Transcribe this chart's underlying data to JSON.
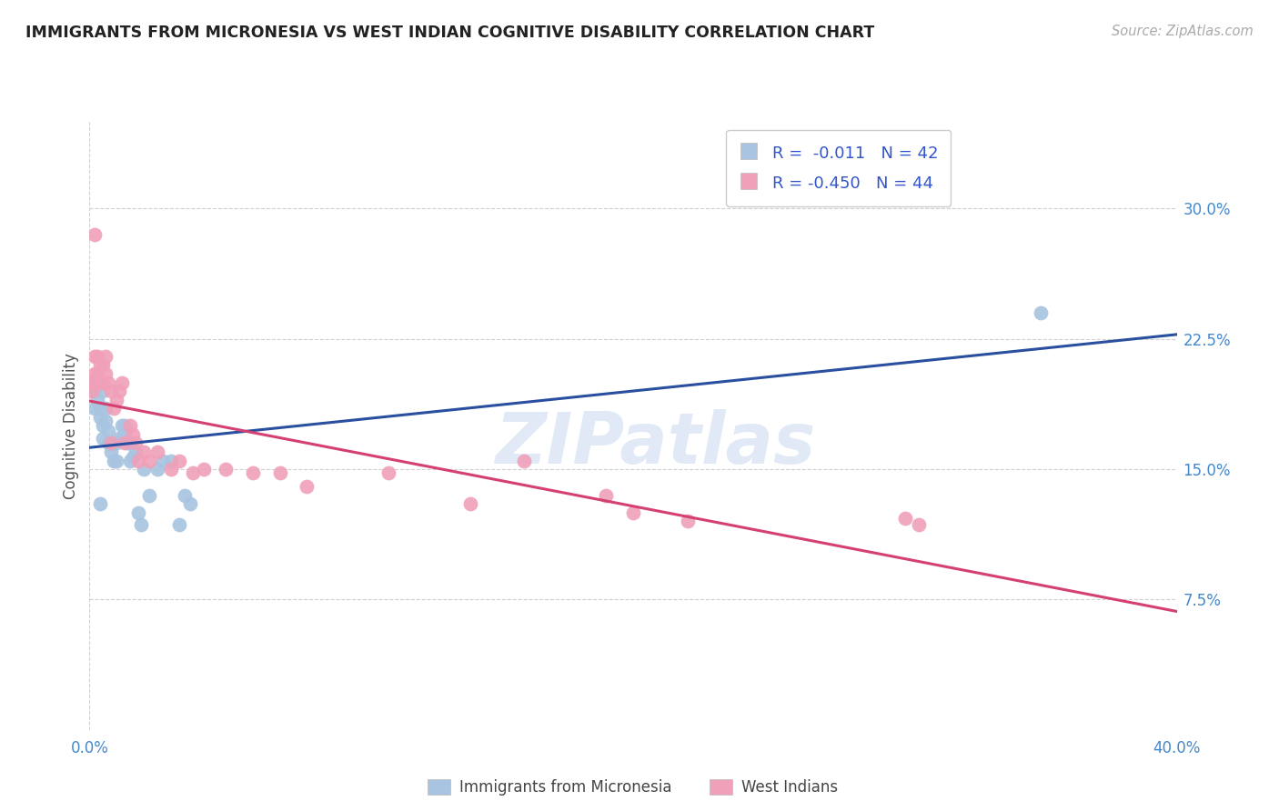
{
  "title": "IMMIGRANTS FROM MICRONESIA VS WEST INDIAN COGNITIVE DISABILITY CORRELATION CHART",
  "source_text": "Source: ZipAtlas.com",
  "ylabel": "Cognitive Disability",
  "legend_label1": "Immigrants from Micronesia",
  "legend_label2": "West Indians",
  "R1": -0.011,
  "N1": 42,
  "R2": -0.45,
  "N2": 44,
  "color_blue": "#a8c4e0",
  "color_pink": "#f0a0b8",
  "line_blue": "#2a4fa0",
  "line_pink": "#d44070",
  "xlim": [
    0.0,
    0.4
  ],
  "ylim": [
    0.0,
    0.35
  ],
  "yticks": [
    0.075,
    0.15,
    0.225,
    0.3
  ],
  "ytick_labels": [
    "7.5%",
    "15.0%",
    "22.5%",
    "30.0%"
  ],
  "watermark": "ZIPatlas",
  "background_color": "#ffffff",
  "grid_color": "#d0d0d0",
  "blue_x": [
    0.001,
    0.001,
    0.002,
    0.002,
    0.003,
    0.003,
    0.004,
    0.004,
    0.005,
    0.005,
    0.005,
    0.006,
    0.006,
    0.007,
    0.007,
    0.008,
    0.008,
    0.009,
    0.009,
    0.01,
    0.01,
    0.011,
    0.012,
    0.013,
    0.013,
    0.014,
    0.015,
    0.015,
    0.016,
    0.017,
    0.018,
    0.019,
    0.02,
    0.022,
    0.025,
    0.027,
    0.03,
    0.033,
    0.035,
    0.037,
    0.35,
    0.004
  ],
  "blue_y": [
    0.2,
    0.195,
    0.195,
    0.185,
    0.2,
    0.19,
    0.185,
    0.18,
    0.195,
    0.175,
    0.168,
    0.185,
    0.178,
    0.172,
    0.165,
    0.165,
    0.16,
    0.165,
    0.155,
    0.165,
    0.155,
    0.168,
    0.175,
    0.175,
    0.17,
    0.165,
    0.165,
    0.155,
    0.157,
    0.16,
    0.125,
    0.118,
    0.15,
    0.135,
    0.15,
    0.155,
    0.155,
    0.118,
    0.135,
    0.13,
    0.24,
    0.13
  ],
  "pink_x": [
    0.001,
    0.001,
    0.002,
    0.002,
    0.003,
    0.003,
    0.004,
    0.004,
    0.005,
    0.005,
    0.006,
    0.006,
    0.007,
    0.008,
    0.009,
    0.01,
    0.011,
    0.012,
    0.013,
    0.015,
    0.016,
    0.017,
    0.018,
    0.02,
    0.022,
    0.025,
    0.03,
    0.033,
    0.038,
    0.042,
    0.05,
    0.06,
    0.07,
    0.08,
    0.11,
    0.14,
    0.16,
    0.19,
    0.2,
    0.22,
    0.3,
    0.305,
    0.002,
    0.008
  ],
  "pink_y": [
    0.2,
    0.195,
    0.215,
    0.205,
    0.215,
    0.205,
    0.21,
    0.2,
    0.21,
    0.2,
    0.215,
    0.205,
    0.2,
    0.195,
    0.185,
    0.19,
    0.195,
    0.2,
    0.165,
    0.175,
    0.17,
    0.165,
    0.155,
    0.16,
    0.155,
    0.16,
    0.15,
    0.155,
    0.148,
    0.15,
    0.15,
    0.148,
    0.148,
    0.14,
    0.148,
    0.13,
    0.155,
    0.135,
    0.125,
    0.12,
    0.122,
    0.118,
    0.285,
    0.165
  ]
}
